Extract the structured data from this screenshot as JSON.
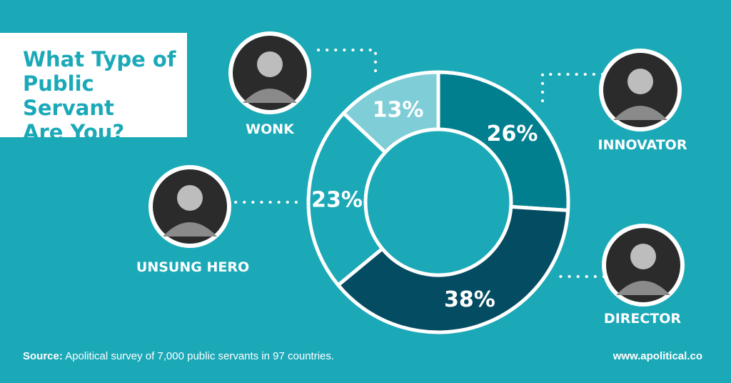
{
  "title_lines": [
    "What Type of",
    "Public Servant",
    "Are You?"
  ],
  "footer": {
    "source_label": "Source:",
    "source_text": " Apolitical survey of 7,000 public servants in 97 countries.",
    "website": "www.apolitical.co"
  },
  "colors": {
    "background": "#1ba9b8",
    "white": "#ffffff"
  },
  "chart_data": {
    "type": "pie",
    "donut": true,
    "unit": "%",
    "slices": [
      {
        "name": "INNOVATOR",
        "value": 26,
        "label": "26%",
        "color": "#017f8e",
        "icon": "steve-jobs-portrait"
      },
      {
        "name": "DIRECTOR",
        "value": 38,
        "label": "38%",
        "color": "#044c62",
        "icon": "director-portrait"
      },
      {
        "name": "UNSUNG HERO",
        "value": 23,
        "label": "23%",
        "color": "#1ba9b8",
        "icon": "desk-worker-portrait"
      },
      {
        "name": "WONK",
        "value": 13,
        "label": "13%",
        "color": "#7fcdd6",
        "icon": "einstein-portrait"
      }
    ]
  }
}
